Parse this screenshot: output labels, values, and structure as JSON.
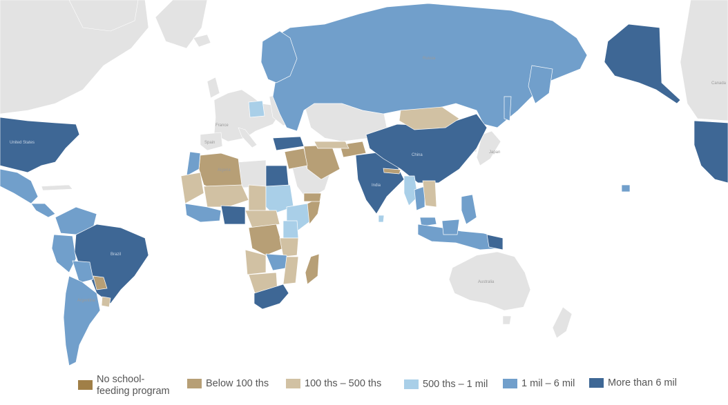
{
  "legend": {
    "items": [
      {
        "label": "No school-feeding program",
        "label_line1": "No school-",
        "label_line2": "feeding program",
        "color": "#a07f47"
      },
      {
        "label": "Below 100 ths",
        "color": "#b79f76"
      },
      {
        "label": "100 ths – 500 ths",
        "color": "#d1c1a3"
      },
      {
        "label": "500 ths – 1 mil",
        "color": "#a9cfe8"
      },
      {
        "label": "1 mil – 6 mil",
        "color": "#719fcb"
      },
      {
        "label": "More than 6 mil",
        "color": "#3e6795"
      }
    ]
  },
  "map": {
    "no_data_color": "#e3e3e3",
    "place_labels": {
      "russia": "Russia",
      "canada": "Canada",
      "united_states": "United States",
      "france": "France",
      "spain": "Spain",
      "china": "China",
      "japan": "Japan",
      "india": "India",
      "algeria": "Algeria",
      "brazil": "Brazil",
      "argentina": "Argentina",
      "australia": "Australia"
    }
  }
}
